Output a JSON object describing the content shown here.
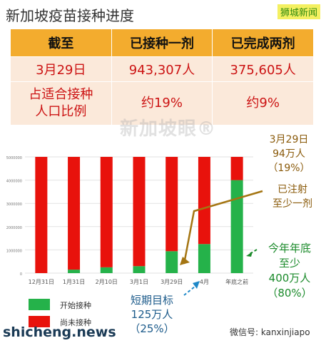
{
  "header": {
    "title": "新加坡疫苗接种进度",
    "brand": "狮城新闻"
  },
  "table": {
    "headers": [
      "截至",
      "已接种一剂",
      "已完成两剂"
    ],
    "rows": [
      [
        "3月29日",
        "943,307人",
        "375,605人"
      ],
      [
        "占适合接种\n人口比例",
        "约19%",
        "约9%"
      ]
    ]
  },
  "watermark": "新加坡眼®",
  "chart_data": {
    "type": "bar",
    "stacked": true,
    "categories": [
      "12月31日",
      "1月31日",
      "2月10日",
      "3月1日",
      "3月29日",
      "4月",
      "年底之前"
    ],
    "ylim": [
      0,
      5000000
    ],
    "yticks": [
      0,
      1000000,
      2000000,
      3000000,
      4000000,
      5000000
    ],
    "ytick_labels": [
      "0",
      "1000000",
      "2000000",
      "3000000",
      "4000000",
      "5000000"
    ],
    "grid": true,
    "legend_position": "bottom-left",
    "series": [
      {
        "name": "开始接种",
        "color": "#25b24a",
        "values": [
          0,
          150000,
          250000,
          300000,
          943307,
          1250000,
          4000000
        ]
      },
      {
        "name": "尚未接种",
        "color": "#e8120c",
        "values": [
          5000000,
          4850000,
          4750000,
          4700000,
          4056693,
          3750000,
          1000000
        ]
      }
    ],
    "annotations": [
      "3月29日\n94万人\n（19%）",
      "已注射\n至少一剂",
      "今年年底\n至少\n400万人\n（80%）",
      "短期目标\n125万人\n（25%）"
    ]
  },
  "footer": {
    "site": "shicheng.news",
    "wechat": "微信号: kanxinjiapo"
  }
}
